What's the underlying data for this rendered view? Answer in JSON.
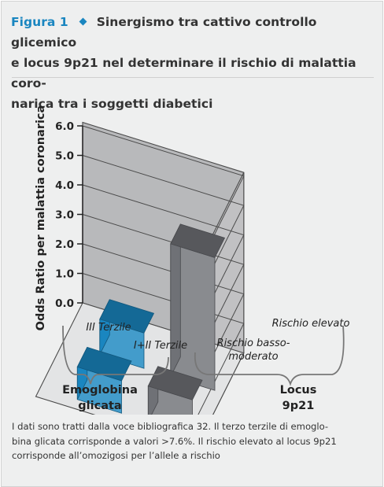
{
  "figure": {
    "label": "Figura 1",
    "title_lines": [
      "Sinergismo tra cattivo controllo glicemico",
      "e locus 9p21 nel determinare il rischio di malattia coro-",
      "narica tra i soggetti diabetici"
    ],
    "footer_lines": [
      "I dati sono tratti dalla voce bibliografica 32. Il terzo terzile di emoglo-",
      "bina glicata corrisponde a valori >7.6%. Il rischio elevato al locus 9p21",
      "corrisponde all’omozigosi per l’allele a rischio"
    ]
  },
  "chart_data": {
    "type": "bar",
    "ylabel": "Odds Ratio per malattia coronarica",
    "ylim": [
      0,
      6
    ],
    "y_ticks": [
      "0.0",
      "1.0",
      "2.0",
      "3.0",
      "4.0",
      "5.0",
      "6.0"
    ],
    "categories": [
      "III Terzile",
      "I+II Terzile",
      "Rischio basso-moderato",
      "Rischio elevato"
    ],
    "category_labels": [
      [
        "III Terzile"
      ],
      [
        "I+II Terzile"
      ],
      [
        "Rischio basso-",
        "moderato"
      ],
      [
        "Rischio elevato"
      ]
    ],
    "groups": [
      {
        "label": [
          "Emoglobina",
          "glicata"
        ]
      },
      {
        "label": [
          "Locus",
          "9p21"
        ]
      }
    ],
    "bars": [
      {
        "hba1c": "III Terzile",
        "locus": "Rischio basso-moderato",
        "value": 1.2,
        "color": "#1a86c0"
      },
      {
        "hba1c": "III Terzile",
        "locus": "Rischio elevato",
        "value": 4.5,
        "color": "#6f7176"
      },
      {
        "hba1c": "I+II Terzile",
        "locus": "Rischio basso-moderato",
        "value": 1.1,
        "color": "#1a86c0"
      },
      {
        "hba1c": "I+II Terzile",
        "locus": "Rischio elevato",
        "value": 1.2,
        "color": "#6f7176"
      }
    ],
    "colors": {
      "accent": "#1a86c0",
      "bar_gray": "#6f7176",
      "wall": "#b8b9bb"
    }
  }
}
